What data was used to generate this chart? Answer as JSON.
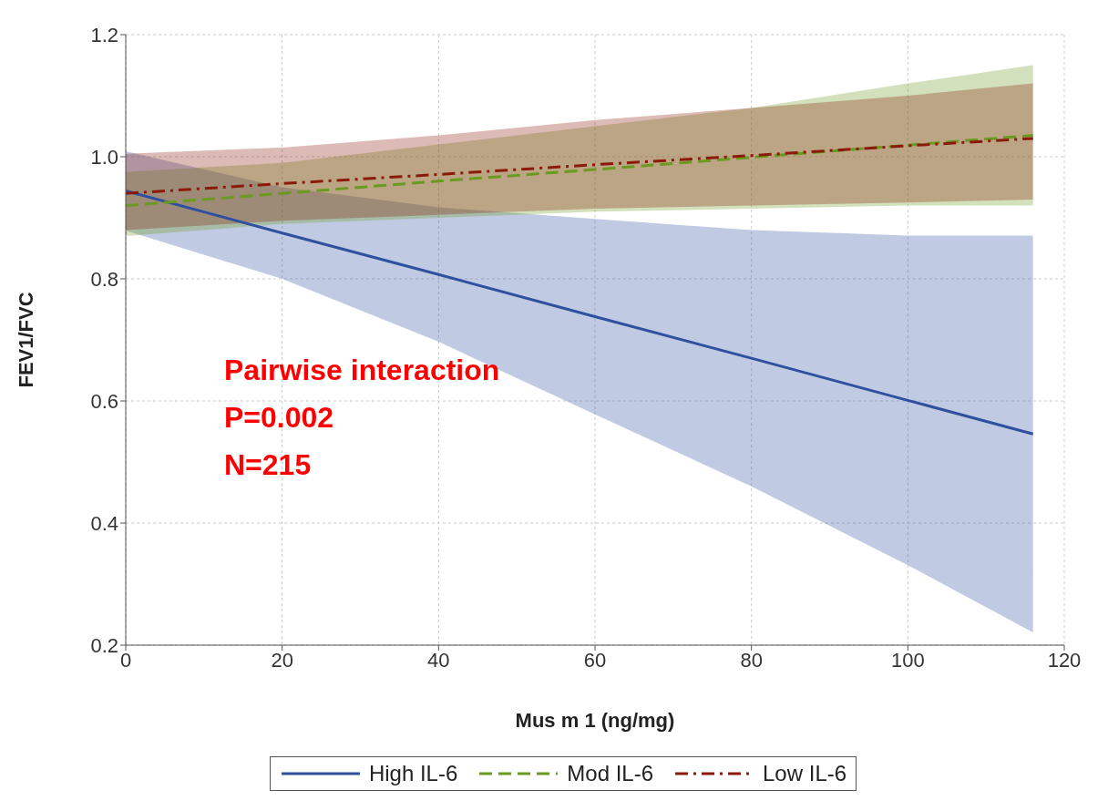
{
  "chart_data": {
    "type": "line",
    "xlabel": "Mus m 1 (ng/mg)",
    "ylabel": "FEV1/FVC",
    "x": [
      0,
      20,
      40,
      60,
      80,
      100,
      116
    ],
    "xlim": [
      0,
      120
    ],
    "xticks": [
      0,
      20,
      40,
      60,
      80,
      100,
      120
    ],
    "ylim": [
      0.2,
      1.2
    ],
    "yticks": [
      0.2,
      0.4,
      0.6,
      0.8,
      {
        "value": 1,
        "label": "1.0"
      },
      1.2
    ],
    "grid": true,
    "legend": "bottom",
    "marker": "none",
    "annotations": [
      "Pairwise interaction",
      "P=0.002",
      "N=215"
    ],
    "series": [
      {
        "name": "High IL-6",
        "color": "#2f4f9f",
        "line_style": "solid",
        "values": [
          0.944,
          0.875,
          0.807,
          0.738,
          0.67,
          0.601,
          0.546
        ],
        "lower": [
          0.879,
          0.8,
          0.697,
          0.578,
          0.46,
          0.331,
          0.221
        ],
        "upper": [
          1.009,
          0.95,
          0.917,
          0.898,
          0.88,
          0.871,
          0.871
        ]
      },
      {
        "name": "Mod IL-6",
        "color": "#6a9a1f",
        "line_style": "dashed",
        "values": [
          0.92,
          0.94,
          0.96,
          0.979,
          0.999,
          1.019,
          1.035
        ],
        "lower": [
          0.87,
          0.89,
          0.9,
          0.91,
          0.915,
          0.92,
          0.92
        ],
        "upper": [
          0.975,
          0.99,
          1.02,
          1.05,
          1.08,
          1.12,
          1.15
        ]
      },
      {
        "name": "Low IL-6",
        "color": "#8b1a0a",
        "line_style": "dashdot",
        "values": [
          0.94,
          0.956,
          0.971,
          0.987,
          1.002,
          1.018,
          1.03
        ],
        "lower": [
          0.88,
          0.895,
          0.905,
          0.915,
          0.92,
          0.925,
          0.93
        ],
        "upper": [
          1.005,
          1.015,
          1.035,
          1.06,
          1.08,
          1.1,
          1.12
        ]
      }
    ]
  }
}
